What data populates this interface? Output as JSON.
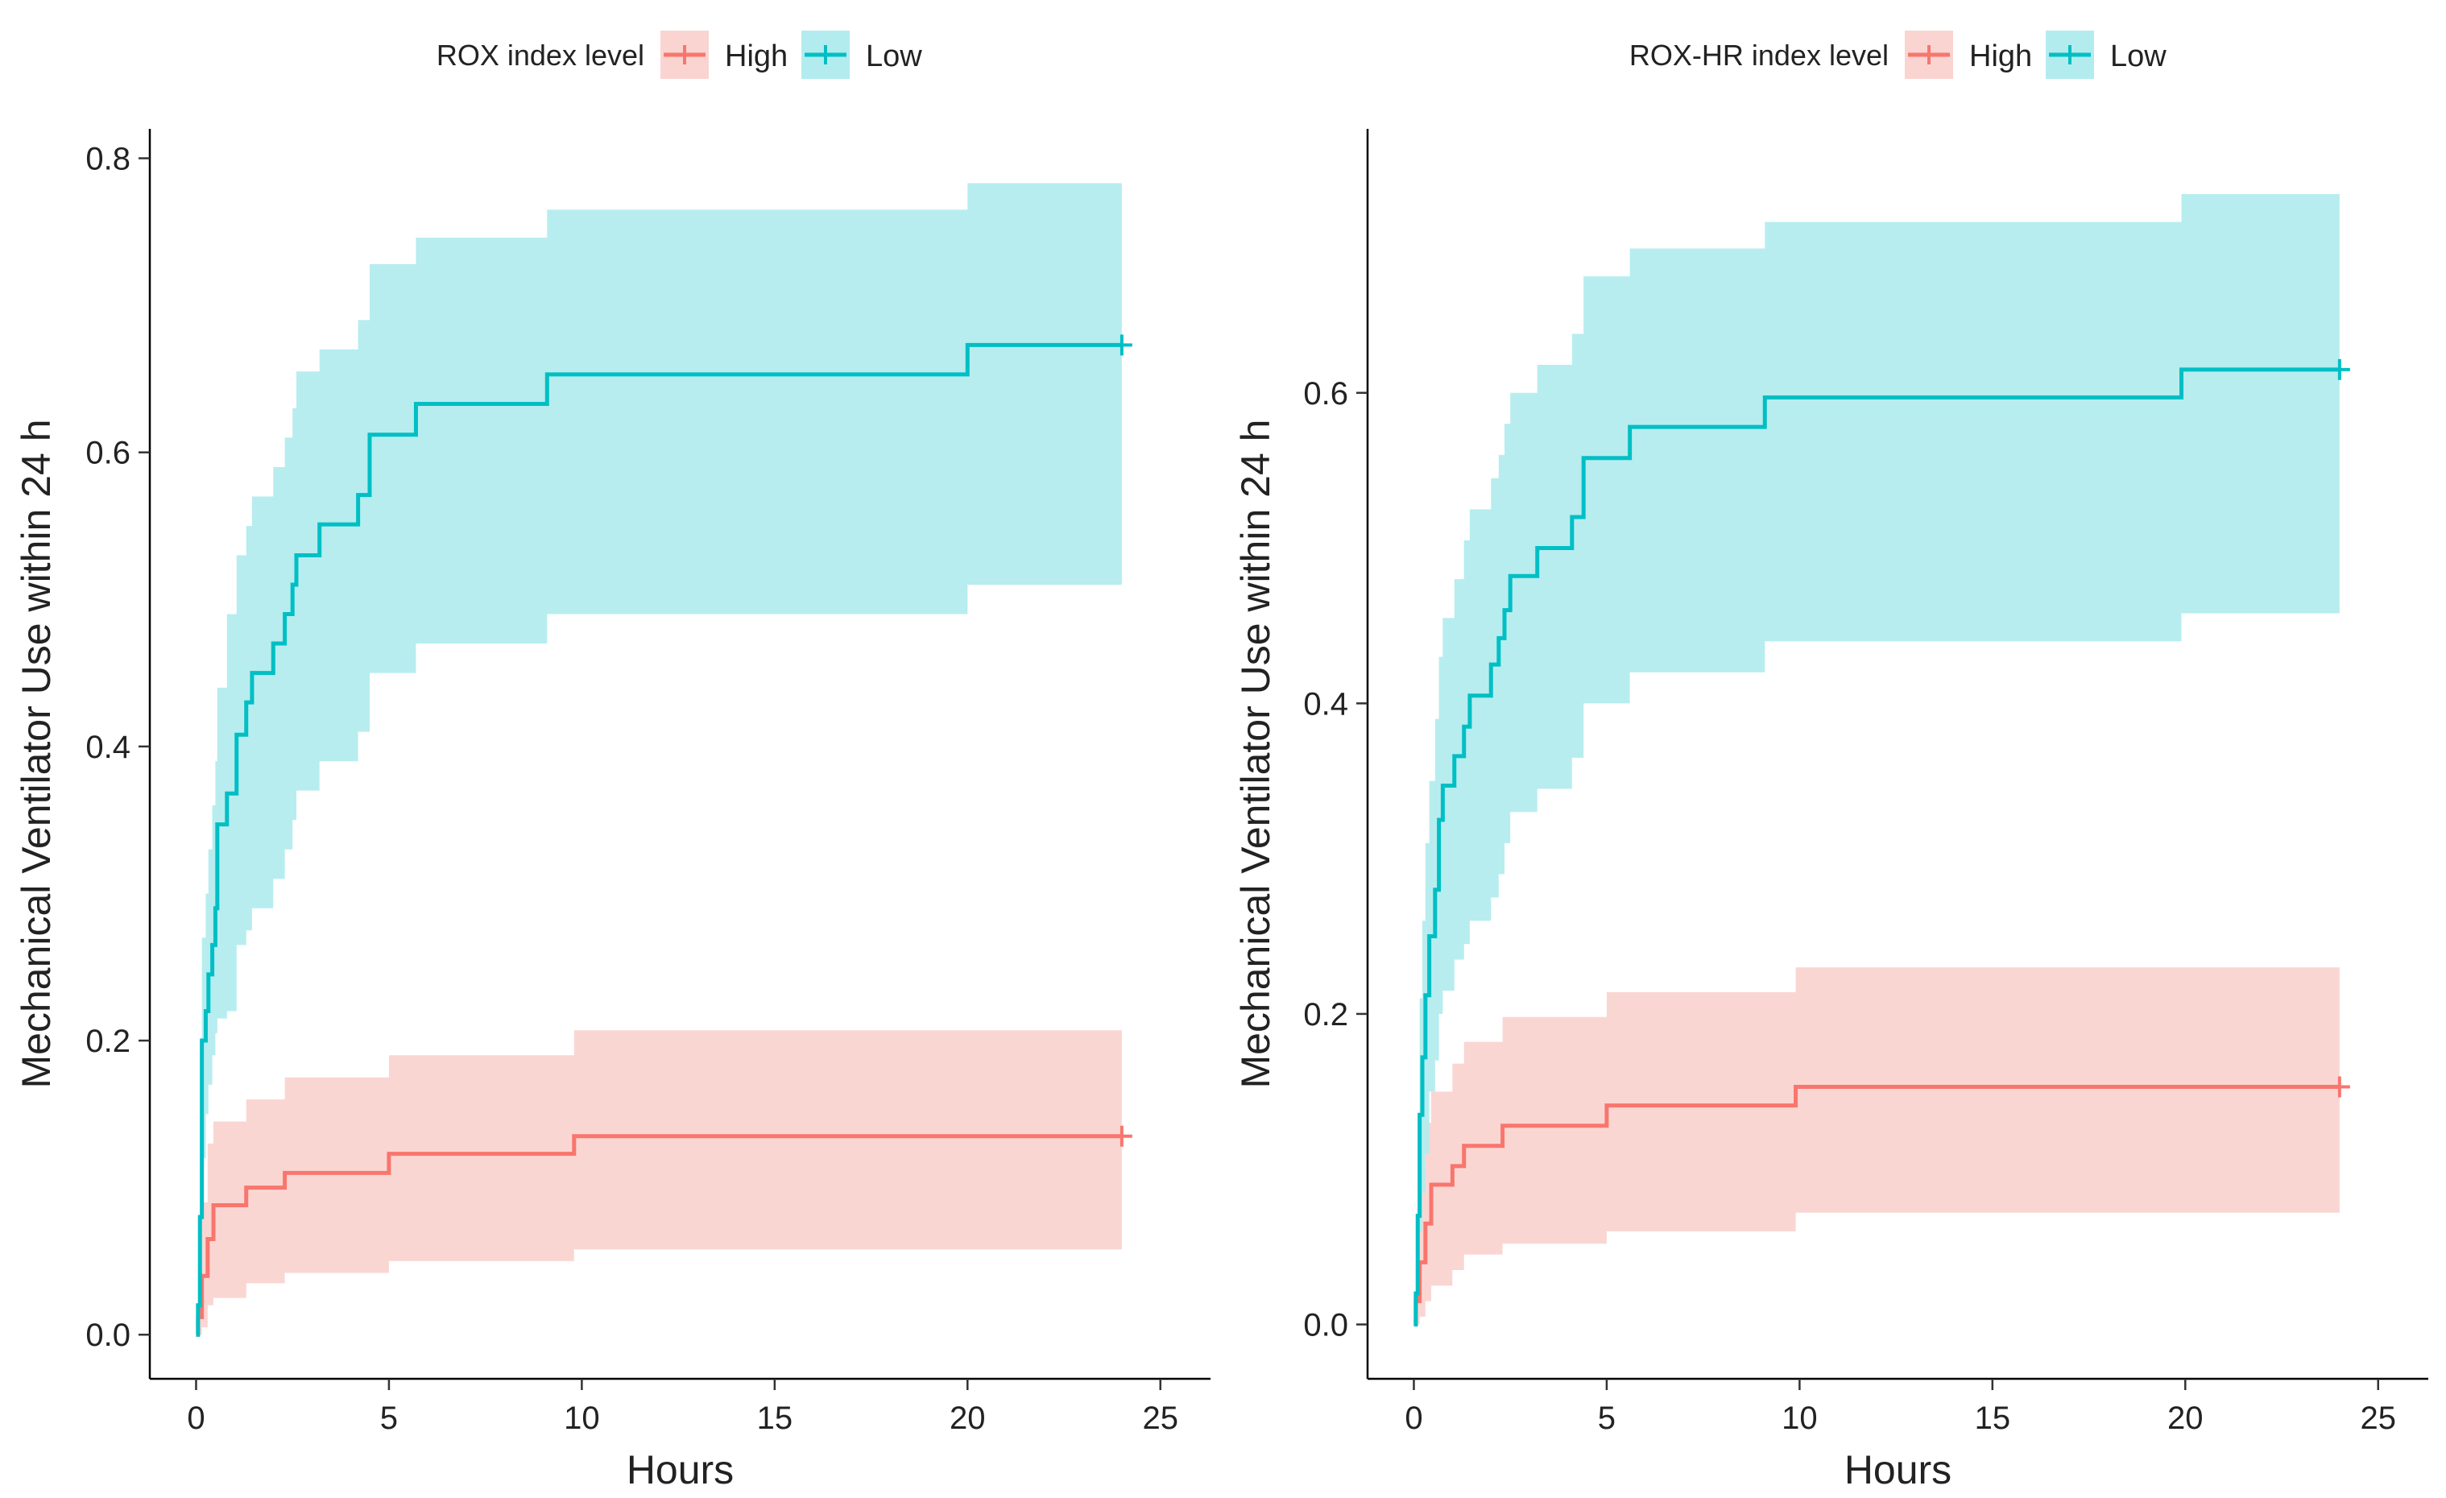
{
  "chart_data": [
    {
      "type": "line",
      "subtype": "kaplan-meier-cumulative-incidence",
      "title": "",
      "legend_title": "ROX index level",
      "legend_position": "top",
      "xlabel": "Hours",
      "ylabel": "Mechanical Ventilator Use within 24 h",
      "xlim": [
        -1.2,
        26.3
      ],
      "ylim": [
        -0.03,
        0.82
      ],
      "xticks": [
        "0",
        "5",
        "10",
        "15",
        "20",
        "25"
      ],
      "yticks": [
        "0.0",
        "0.2",
        "0.4",
        "0.6",
        "0.8"
      ],
      "grid": false,
      "series": [
        {
          "name": "High",
          "color": "#F8766D",
          "fill": "#FAD4D1",
          "censor_marker": [
            24,
            0.135
          ],
          "steps": [
            [
              0,
              0
            ],
            [
              0.05,
              0.012
            ],
            [
              0.15,
              0.04
            ],
            [
              0.3,
              0.065
            ],
            [
              0.45,
              0.088
            ],
            [
              1.3,
              0.1
            ],
            [
              2.3,
              0.11
            ],
            [
              5.0,
              0.123
            ],
            [
              9.8,
              0.135
            ],
            [
              24,
              0.135
            ]
          ],
          "lower": [
            [
              0,
              0
            ],
            [
              0.05,
              0
            ],
            [
              0.15,
              0.005
            ],
            [
              0.3,
              0.02
            ],
            [
              0.45,
              0.025
            ],
            [
              1.3,
              0.035
            ],
            [
              2.3,
              0.042
            ],
            [
              5.0,
              0.05
            ],
            [
              9.8,
              0.058
            ],
            [
              24,
              0.058
            ]
          ],
          "upper": [
            [
              0,
              0
            ],
            [
              0.05,
              0.03
            ],
            [
              0.15,
              0.09
            ],
            [
              0.3,
              0.13
            ],
            [
              0.45,
              0.145
            ],
            [
              1.3,
              0.16
            ],
            [
              2.3,
              0.175
            ],
            [
              5.0,
              0.19
            ],
            [
              9.8,
              0.207
            ],
            [
              24,
              0.207
            ]
          ]
        },
        {
          "name": "Low",
          "color": "#00BFC4",
          "fill": "#B3ECEE",
          "censor_marker": [
            24,
            0.673
          ],
          "steps": [
            [
              0,
              0
            ],
            [
              0.05,
              0.02
            ],
            [
              0.1,
              0.08
            ],
            [
              0.15,
              0.2
            ],
            [
              0.25,
              0.22
            ],
            [
              0.32,
              0.245
            ],
            [
              0.42,
              0.265
            ],
            [
              0.5,
              0.29
            ],
            [
              0.55,
              0.347
            ],
            [
              0.8,
              0.368
            ],
            [
              1.05,
              0.408
            ],
            [
              1.3,
              0.43
            ],
            [
              1.45,
              0.45
            ],
            [
              2.0,
              0.47
            ],
            [
              2.3,
              0.49
            ],
            [
              2.5,
              0.51
            ],
            [
              2.6,
              0.53
            ],
            [
              3.2,
              0.551
            ],
            [
              4.2,
              0.571
            ],
            [
              4.5,
              0.612
            ],
            [
              5.7,
              0.633
            ],
            [
              9.1,
              0.653
            ],
            [
              20.0,
              0.673
            ],
            [
              24,
              0.673
            ]
          ],
          "lower": [
            [
              0,
              0
            ],
            [
              0.05,
              0.005
            ],
            [
              0.1,
              0.02
            ],
            [
              0.15,
              0.12
            ],
            [
              0.25,
              0.15
            ],
            [
              0.32,
              0.17
            ],
            [
              0.42,
              0.19
            ],
            [
              0.5,
              0.205
            ],
            [
              0.55,
              0.215
            ],
            [
              0.8,
              0.22
            ],
            [
              1.05,
              0.265
            ],
            [
              1.3,
              0.275
            ],
            [
              1.45,
              0.29
            ],
            [
              2.0,
              0.31
            ],
            [
              2.3,
              0.33
            ],
            [
              2.5,
              0.35
            ],
            [
              2.6,
              0.37
            ],
            [
              3.2,
              0.39
            ],
            [
              4.2,
              0.41
            ],
            [
              4.5,
              0.45
            ],
            [
              5.7,
              0.47
            ],
            [
              9.1,
              0.49
            ],
            [
              20.0,
              0.51
            ],
            [
              24,
              0.51
            ]
          ],
          "upper": [
            [
              0,
              0
            ],
            [
              0.05,
              0.05
            ],
            [
              0.1,
              0.15
            ],
            [
              0.15,
              0.27
            ],
            [
              0.25,
              0.3
            ],
            [
              0.32,
              0.33
            ],
            [
              0.42,
              0.36
            ],
            [
              0.5,
              0.39
            ],
            [
              0.55,
              0.44
            ],
            [
              0.8,
              0.49
            ],
            [
              1.05,
              0.53
            ],
            [
              1.3,
              0.55
            ],
            [
              1.45,
              0.57
            ],
            [
              2.0,
              0.59
            ],
            [
              2.3,
              0.61
            ],
            [
              2.5,
              0.63
            ],
            [
              2.6,
              0.655
            ],
            [
              3.2,
              0.67
            ],
            [
              4.2,
              0.69
            ],
            [
              4.5,
              0.728
            ],
            [
              5.7,
              0.746
            ],
            [
              9.1,
              0.765
            ],
            [
              20.0,
              0.783
            ],
            [
              24,
              0.783
            ]
          ]
        }
      ]
    },
    {
      "type": "line",
      "subtype": "kaplan-meier-cumulative-incidence",
      "title": "",
      "legend_title": "ROX-HR index level",
      "legend_position": "top",
      "xlabel": "Hours",
      "ylabel": "Mechanical Ventilator Use within 24 h",
      "xlim": [
        -1.2,
        26.3
      ],
      "ylim": [
        -0.035,
        0.77
      ],
      "xticks": [
        "0",
        "5",
        "10",
        "15",
        "20",
        "25"
      ],
      "yticks": [
        "0.0",
        "0.2",
        "0.4",
        "0.6"
      ],
      "grid": false,
      "series": [
        {
          "name": "High",
          "color": "#F8766D",
          "fill": "#FAD4D1",
          "censor_marker": [
            24,
            0.153
          ],
          "steps": [
            [
              0,
              0
            ],
            [
              0.05,
              0.015
            ],
            [
              0.15,
              0.04
            ],
            [
              0.3,
              0.065
            ],
            [
              0.45,
              0.09
            ],
            [
              1.0,
              0.102
            ],
            [
              1.3,
              0.115
            ],
            [
              2.3,
              0.128
            ],
            [
              5.0,
              0.141
            ],
            [
              9.9,
              0.153
            ],
            [
              24,
              0.153
            ]
          ],
          "lower": [
            [
              0,
              0
            ],
            [
              0.05,
              0
            ],
            [
              0.15,
              0.005
            ],
            [
              0.3,
              0.015
            ],
            [
              0.45,
              0.025
            ],
            [
              1.0,
              0.035
            ],
            [
              1.3,
              0.045
            ],
            [
              2.3,
              0.052
            ],
            [
              5.0,
              0.06
            ],
            [
              9.9,
              0.072
            ],
            [
              24,
              0.072
            ]
          ],
          "upper": [
            [
              0,
              0
            ],
            [
              0.05,
              0.04
            ],
            [
              0.15,
              0.1
            ],
            [
              0.3,
              0.13
            ],
            [
              0.45,
              0.15
            ],
            [
              1.0,
              0.168
            ],
            [
              1.3,
              0.182
            ],
            [
              2.3,
              0.198
            ],
            [
              5.0,
              0.214
            ],
            [
              9.9,
              0.23
            ],
            [
              24,
              0.23
            ]
          ]
        },
        {
          "name": "Low",
          "color": "#00BFC4",
          "fill": "#B3ECEE",
          "censor_marker": [
            24,
            0.615
          ],
          "steps": [
            [
              0,
              0
            ],
            [
              0.05,
              0.02
            ],
            [
              0.1,
              0.07
            ],
            [
              0.15,
              0.135
            ],
            [
              0.22,
              0.172
            ],
            [
              0.3,
              0.212
            ],
            [
              0.4,
              0.25
            ],
            [
              0.55,
              0.28
            ],
            [
              0.65,
              0.325
            ],
            [
              0.75,
              0.347
            ],
            [
              1.05,
              0.366
            ],
            [
              1.3,
              0.385
            ],
            [
              1.45,
              0.405
            ],
            [
              2.0,
              0.425
            ],
            [
              2.2,
              0.442
            ],
            [
              2.35,
              0.46
            ],
            [
              2.5,
              0.482
            ],
            [
              3.2,
              0.5
            ],
            [
              4.1,
              0.52
            ],
            [
              4.4,
              0.558
            ],
            [
              5.6,
              0.578
            ],
            [
              9.1,
              0.597
            ],
            [
              19.9,
              0.615
            ],
            [
              24,
              0.615
            ]
          ],
          "lower": [
            [
              0,
              0
            ],
            [
              0.05,
              0.005
            ],
            [
              0.1,
              0.02
            ],
            [
              0.15,
              0.06
            ],
            [
              0.22,
              0.085
            ],
            [
              0.3,
              0.11
            ],
            [
              0.4,
              0.15
            ],
            [
              0.55,
              0.17
            ],
            [
              0.65,
              0.2
            ],
            [
              0.75,
              0.215
            ],
            [
              1.05,
              0.235
            ],
            [
              1.3,
              0.245
            ],
            [
              1.45,
              0.26
            ],
            [
              2.0,
              0.275
            ],
            [
              2.2,
              0.29
            ],
            [
              2.35,
              0.31
            ],
            [
              2.5,
              0.33
            ],
            [
              3.2,
              0.345
            ],
            [
              4.1,
              0.365
            ],
            [
              4.4,
              0.4
            ],
            [
              5.6,
              0.42
            ],
            [
              9.1,
              0.44
            ],
            [
              19.9,
              0.458
            ],
            [
              24,
              0.458
            ]
          ],
          "upper": [
            [
              0,
              0
            ],
            [
              0.05,
              0.04
            ],
            [
              0.1,
              0.13
            ],
            [
              0.15,
              0.21
            ],
            [
              0.22,
              0.26
            ],
            [
              0.3,
              0.31
            ],
            [
              0.4,
              0.35
            ],
            [
              0.55,
              0.39
            ],
            [
              0.65,
              0.43
            ],
            [
              0.75,
              0.455
            ],
            [
              1.05,
              0.48
            ],
            [
              1.3,
              0.505
            ],
            [
              1.45,
              0.525
            ],
            [
              2.0,
              0.545
            ],
            [
              2.2,
              0.56
            ],
            [
              2.35,
              0.58
            ],
            [
              2.5,
              0.6
            ],
            [
              3.2,
              0.618
            ],
            [
              4.1,
              0.638
            ],
            [
              4.4,
              0.675
            ],
            [
              5.6,
              0.693
            ],
            [
              9.1,
              0.71
            ],
            [
              19.9,
              0.728
            ],
            [
              24,
              0.728
            ]
          ]
        }
      ]
    }
  ]
}
